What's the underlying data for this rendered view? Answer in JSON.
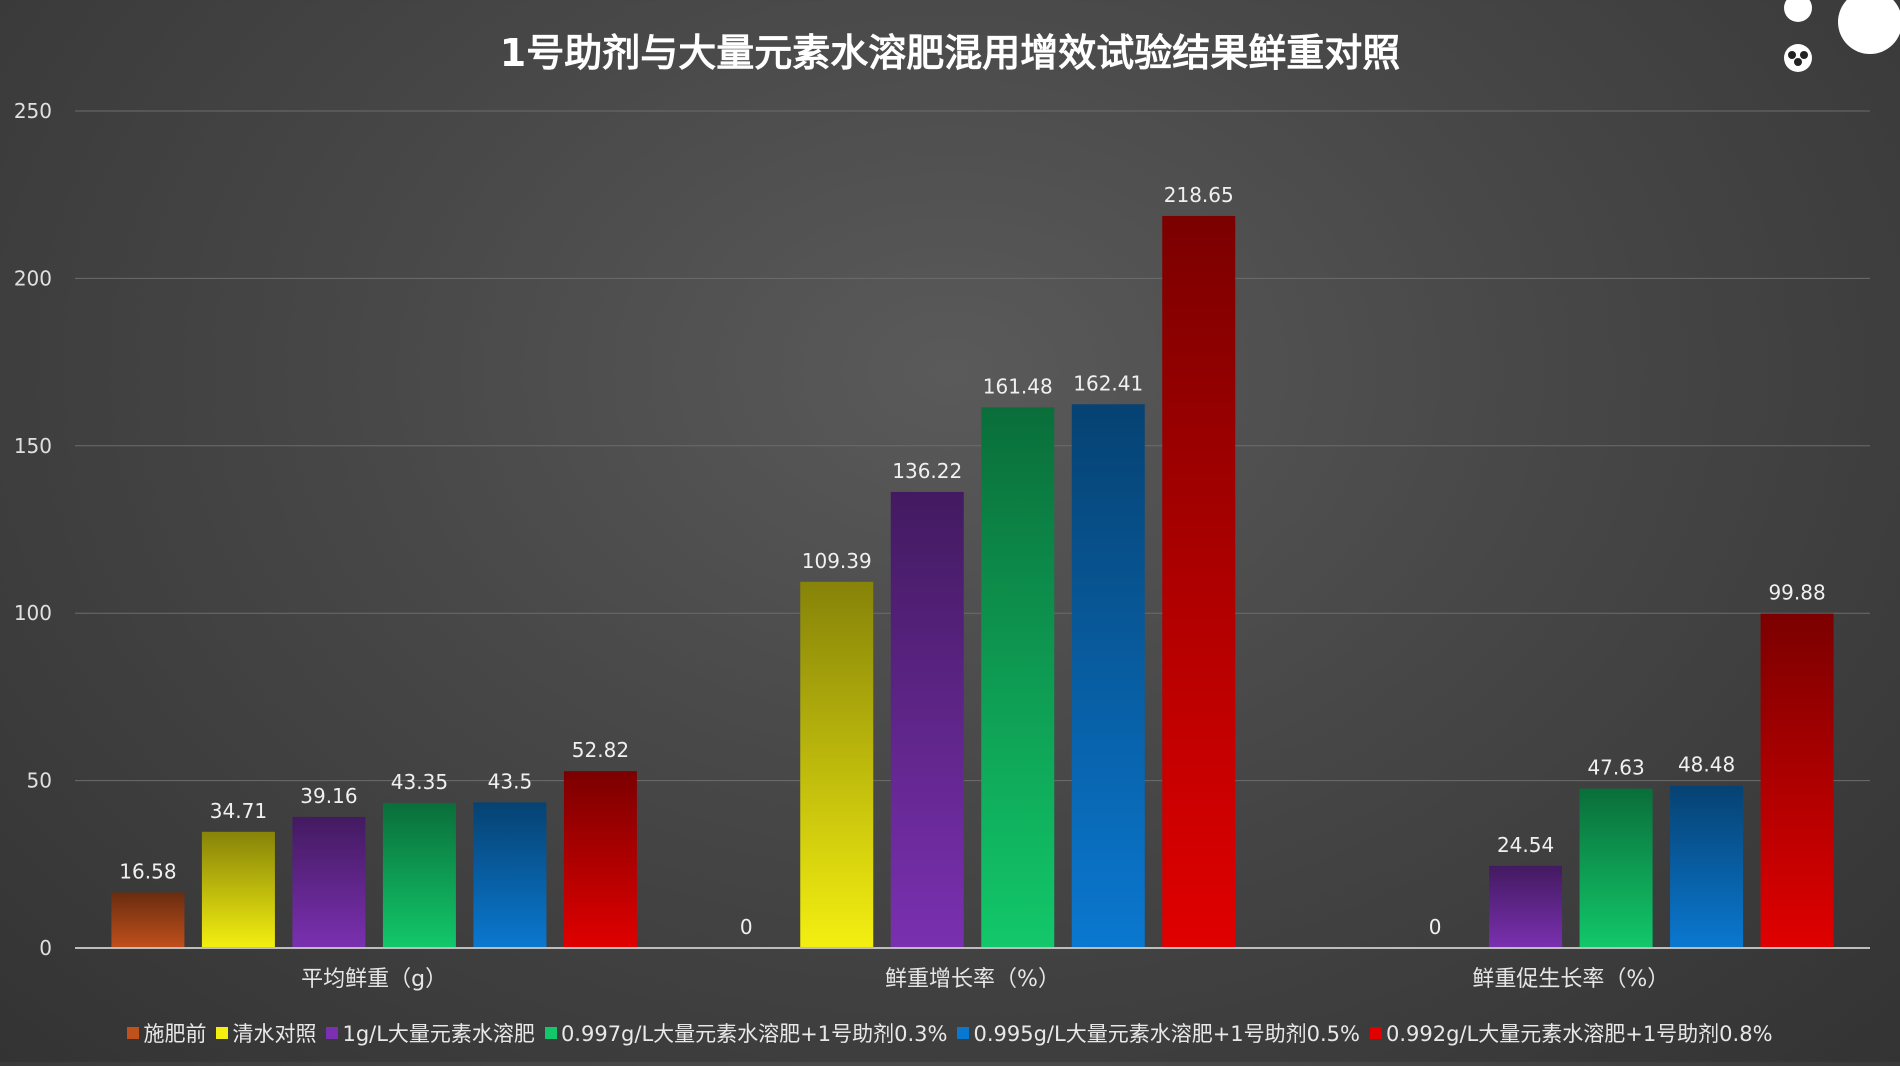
{
  "chart_data": {
    "type": "bar",
    "title": "1号助剂与大量元素水溶肥混用增效试验结果鲜重对照",
    "categories": [
      "平均鲜重（g）",
      "鲜重增长率（%）",
      "鲜重促生长率（%）"
    ],
    "series": [
      {
        "name": "施肥前",
        "values": [
          16.58,
          0,
          null
        ],
        "color": "#c0501c"
      },
      {
        "name": "清水对照",
        "values": [
          34.71,
          109.39,
          0
        ],
        "color": "#f4ef10"
      },
      {
        "name": "1g/L大量元素水溶肥",
        "values": [
          39.16,
          136.22,
          24.54
        ],
        "color": "#7a30b0"
      },
      {
        "name": "0.997g/L大量元素水溶肥+1号助剂0.3%",
        "values": [
          43.35,
          161.48,
          47.63
        ],
        "color": "#12c86a"
      },
      {
        "name": "0.995g/L大量元素水溶肥+1号助剂0.5%",
        "values": [
          43.5,
          162.41,
          48.48
        ],
        "color": "#0a78d0"
      },
      {
        "name": "0.992g/L大量元素水溶肥+1号助剂0.8%",
        "values": [
          52.82,
          218.65,
          99.88
        ],
        "color": "#e00000"
      }
    ],
    "yticks": [
      0,
      50,
      100,
      150,
      200,
      250
    ],
    "ylim": [
      0,
      250
    ],
    "grid": true,
    "legend_position": "bottom"
  }
}
